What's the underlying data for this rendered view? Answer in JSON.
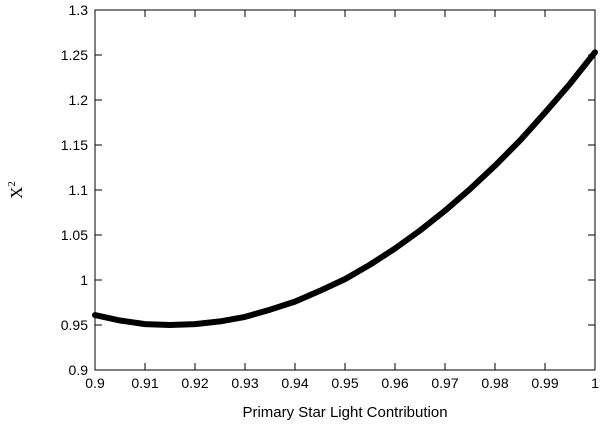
{
  "chart_data": {
    "type": "line",
    "title": "",
    "xlabel": "Primary Star Light Contribution",
    "ylabel": {
      "base": "X",
      "superscript": "2"
    },
    "xlim": [
      0.9,
      1.0
    ],
    "ylim": [
      0.9,
      1.3
    ],
    "grid": false,
    "legend": "none",
    "x_ticks": [
      "0.9",
      "0.91",
      "0.92",
      "0.93",
      "0.94",
      "0.95",
      "0.96",
      "0.97",
      "0.98",
      "0.99",
      "1"
    ],
    "y_ticks": [
      "0.9",
      "0.95",
      "1",
      "1.05",
      "1.1",
      "1.15",
      "1.2",
      "1.25",
      "1.3"
    ],
    "series": [
      {
        "color": "#000000",
        "x": [
          0.9,
          0.905,
          0.91,
          0.915,
          0.92,
          0.925,
          0.93,
          0.935,
          0.94,
          0.945,
          0.95,
          0.955,
          0.96,
          0.965,
          0.97,
          0.975,
          0.98,
          0.985,
          0.99,
          0.995,
          1.0
        ],
        "y": [
          0.961,
          0.955,
          0.951,
          0.95,
          0.951,
          0.954,
          0.959,
          0.967,
          0.976,
          0.988,
          1.001,
          1.017,
          1.035,
          1.055,
          1.077,
          1.101,
          1.127,
          1.155,
          1.186,
          1.218,
          1.253
        ]
      }
    ]
  }
}
